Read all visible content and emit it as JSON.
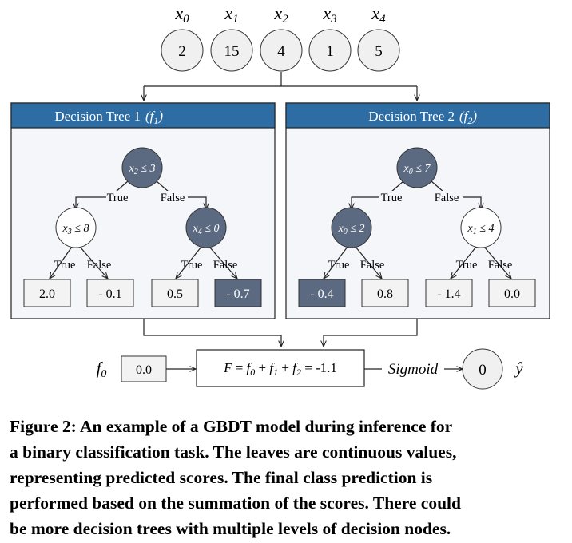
{
  "inputs": [
    {
      "label": "x0",
      "value": "2"
    },
    {
      "label": "x1",
      "value": "15"
    },
    {
      "label": "x2",
      "value": "4"
    },
    {
      "label": "x3",
      "value": "1"
    },
    {
      "label": "x4",
      "value": "5"
    }
  ],
  "trees": [
    {
      "title": "Decision Tree 1",
      "fn": "(f1)",
      "root": "x2 ≤ 3",
      "root_true": "True",
      "root_false": "False",
      "left": "x3 ≤ 8",
      "right": "x4 ≤ 0",
      "branch_labels": [
        "True",
        "False",
        "True",
        "False"
      ],
      "leaves": [
        "2.0",
        "- 0.1",
        "0.5",
        "- 0.7"
      ]
    },
    {
      "title": "Decision Tree 2",
      "fn": "(f2)",
      "root": "x0 ≤ 7",
      "root_true": "True",
      "root_false": "False",
      "left": "x0 ≤ 2",
      "right": "x1 ≤ 4",
      "branch_labels": [
        "True",
        "False",
        "True",
        "False"
      ],
      "leaves": [
        "- 0.4",
        "0.8",
        "- 1.4",
        "0.0"
      ]
    }
  ],
  "f0": {
    "label": "f0",
    "value": "0.0"
  },
  "sum_formula": "F = f0 + f1 + f2 = -1.1",
  "sigmoid_label": "Sigmoid",
  "output": {
    "value": "0",
    "label": "ŷ"
  },
  "caption": [
    "Figure 2: An example of a GBDT model during inference for",
    "a binary classification task. The leaves are continuous values,",
    "representing predicted scores. The final class prediction is",
    "performed based on the summation of the scores. There could",
    "be more decision trees with multiple levels of decision nodes."
  ],
  "colors": {
    "tree_header": "#2e6da4",
    "tree_body": "#f4f6fa",
    "active_node": "#5b6a80",
    "inactive_node": "#ffffff",
    "input_node": "#f0f0f0",
    "leaf_box": "#f3f3f3"
  }
}
